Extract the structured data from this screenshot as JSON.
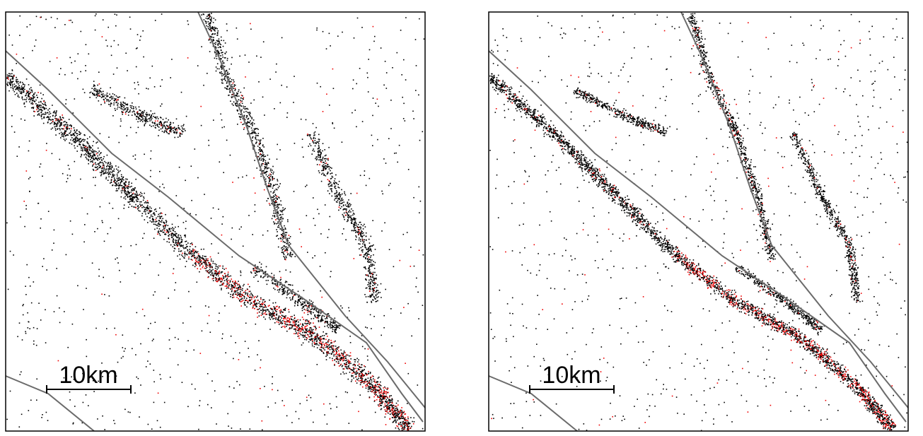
{
  "panels": [
    {
      "scale_bar": {
        "label": "10km"
      }
    },
    {
      "scale_bar": {
        "label": "10km"
      }
    }
  ]
}
